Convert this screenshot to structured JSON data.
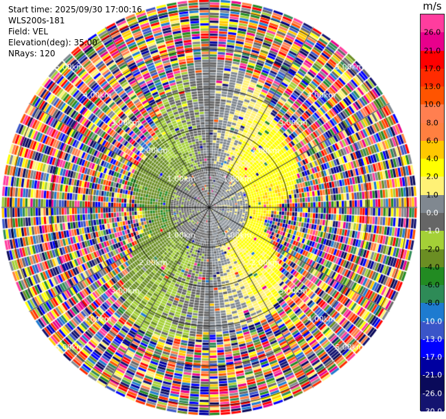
{
  "header": {
    "start_time": "Start time: 2025/09/30 17:00:16",
    "site": "WLS200s-181",
    "field": "Field: VEL",
    "elevation": "Elevation(deg): 35.00",
    "nrays": "NRays: 120"
  },
  "chart_data": {
    "type": "heatmap",
    "subtype": "radar-ppi",
    "field": "VEL",
    "nrays": 120,
    "max_range_km": 5.25,
    "range_ring_labels": [
      "1.00km",
      "2.00km",
      "3.00km",
      "4.00km",
      "5.00km"
    ],
    "colorbar": {
      "unit": "m/s",
      "ticks": [
        "26.0",
        "21.0",
        "17.0",
        "13.0",
        "10.0",
        "8.0",
        "6.0",
        "4.0",
        "2.0",
        "1.0",
        "0.0",
        "-1.0",
        "-2.0",
        "-4.0",
        "-6.0",
        "-8.0",
        "-10.0",
        "-13.0",
        "-17.0",
        "-21.0",
        "-26.0",
        "-30.0"
      ],
      "colors": [
        "#ff3d9e",
        "#e8008c",
        "#ff0000",
        "#ff2b00",
        "#ff5400",
        "#ff7f50",
        "#ff8040",
        "#ffc800",
        "#ffff00",
        "#fff176",
        "#808890",
        "#666666",
        "#a4d037",
        "#6b8e23",
        "#228b22",
        "#2e8b57",
        "#1e7bd0",
        "#3a55c8",
        "#0000ff",
        "#0000a0",
        "#0a0a5a",
        "#141470"
      ]
    }
  }
}
